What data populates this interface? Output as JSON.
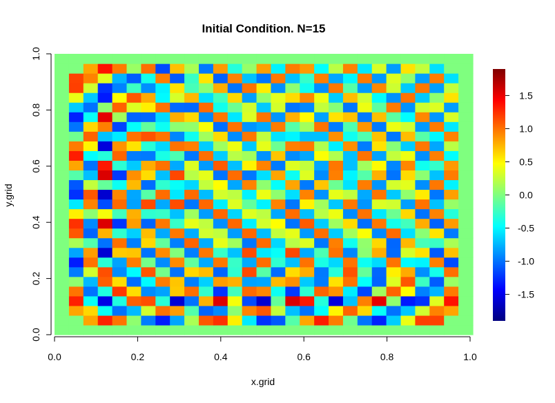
{
  "chart_data": {
    "type": "heatmap",
    "title": "Initial Condition. N=15",
    "xlabel": "x.grid",
    "ylabel": "y.grid",
    "xlim": [
      0,
      1
    ],
    "ylim": [
      0,
      1
    ],
    "xticks": [
      "0.0",
      "0.2",
      "0.4",
      "0.6",
      "0.8",
      "1.0"
    ],
    "yticks": [
      "0.0",
      "0.2",
      "0.4",
      "0.6",
      "0.8",
      "1.0"
    ],
    "grid": false,
    "legend": "right",
    "colorbar": {
      "palette": "jet",
      "range": [
        -1.9,
        1.9
      ],
      "ticks": [
        "1.5",
        "1.0",
        "0.5",
        "0.0",
        "-0.5",
        "-1.0",
        "-1.5"
      ],
      "colors": [
        "#00007F",
        "#0000FF",
        "#007FFF",
        "#00FFFF",
        "#7FFF7F",
        "#FFFF00",
        "#FF7F00",
        "#FF0000",
        "#7F0000"
      ]
    },
    "grid_size": 29,
    "z": [
      [
        0.0,
        0.0,
        0.0,
        0.0,
        0.0,
        0.0,
        0.0,
        0.0,
        0.0,
        0.0,
        0.0,
        0.0,
        0.0,
        0.0,
        0.0,
        0.0,
        0.0,
        0.0,
        0.0,
        0.0,
        0.0,
        0.0,
        0.0,
        0.0,
        0.0,
        0.0,
        0.0,
        0.0,
        0.0
      ],
      [
        0.0,
        0.0,
        0.81,
        1.3,
        0.99,
        0.06,
        -0.96,
        -1.32,
        -0.81,
        0.16,
        1.1,
        1.24,
        0.53,
        -0.55,
        -1.24,
        -1.1,
        -0.16,
        0.81,
        1.32,
        0.96,
        -0.06,
        -0.99,
        -1.3,
        -0.66,
        0.4,
        1.19,
        1.18,
        0.0,
        0.0
      ],
      [
        0.0,
        0.81,
        0.62,
        -0.44,
        -1.0,
        -0.73,
        0.3,
        1.0,
        0.84,
        -0.17,
        -1.05,
        -0.91,
        0.05,
        0.93,
        1.1,
        0.25,
        -0.71,
        -1.0,
        -0.47,
        0.51,
        1.06,
        0.62,
        -0.45,
        -1.0,
        -0.68,
        0.3,
        0.94,
        0.81,
        0.0
      ],
      [
        0.0,
        1.3,
        -0.44,
        -1.52,
        -0.36,
        1.07,
        1.13,
        -0.32,
        -1.59,
        -1.0,
        0.76,
        1.55,
        0.44,
        -1.14,
        -1.6,
        -0.1,
        1.56,
        1.34,
        -0.34,
        -1.55,
        -0.7,
        0.95,
        1.52,
        0.06,
        -1.33,
        -1.24,
        0.36,
        1.36,
        0.0
      ],
      [
        0.0,
        0.99,
        -1.0,
        -0.36,
        1.22,
        0.6,
        -0.9,
        -0.82,
        0.67,
        1.01,
        -0.29,
        -1.23,
        -0.23,
        1.03,
        0.92,
        -0.43,
        -1.21,
        -0.31,
        1.05,
        0.88,
        -0.54,
        -1.17,
        0.13,
        1.06,
        0.48,
        -0.94,
        -0.75,
        0.97,
        0.0
      ],
      [
        0.0,
        0.06,
        -0.73,
        1.07,
        0.6,
        -1.02,
        -0.49,
        0.96,
        0.69,
        -0.95,
        -0.65,
        0.84,
        0.77,
        -0.82,
        -0.8,
        0.73,
        0.89,
        -0.67,
        -0.96,
        0.58,
        1.0,
        -0.46,
        -1.05,
        0.35,
        1.1,
        -0.25,
        -1.08,
        0.1,
        0.0
      ],
      [
        0.0,
        -0.96,
        0.3,
        1.13,
        -0.9,
        -0.49,
        1.11,
        -0.04,
        -1.0,
        0.62,
        0.72,
        -1.05,
        -0.3,
        1.15,
        -0.15,
        -1.02,
        0.6,
        0.78,
        -0.97,
        -0.33,
        1.12,
        -0.1,
        -1.04,
        0.53,
        0.79,
        -0.89,
        -0.4,
        1.01,
        0.0
      ],
      [
        0.0,
        -1.32,
        1.0,
        -0.32,
        -0.82,
        0.96,
        -0.04,
        -0.9,
        0.91,
        -0.11,
        -0.79,
        0.98,
        -0.27,
        -0.79,
        1.02,
        -0.3,
        -0.71,
        1.0,
        -0.38,
        -0.62,
        0.99,
        -0.43,
        -0.61,
        1.0,
        -0.49,
        -0.52,
        0.95,
        -1.15,
        0.0
      ],
      [
        0.0,
        -0.81,
        0.84,
        -1.59,
        0.67,
        0.69,
        -1.0,
        0.91,
        0.01,
        -0.95,
        0.98,
        -0.27,
        -0.7,
        1.14,
        -0.56,
        -0.45,
        1.16,
        -0.79,
        -0.19,
        1.0,
        -0.92,
        0.05,
        0.78,
        -1.03,
        0.32,
        0.58,
        -1.09,
        0.71,
        0.0
      ],
      [
        0.0,
        0.16,
        -0.17,
        -1.0,
        1.01,
        -0.95,
        0.62,
        -0.11,
        -0.95,
        1.05,
        -0.78,
        0.38,
        0.12,
        -0.98,
        1.03,
        -0.62,
        0.21,
        0.34,
        -0.98,
        0.95,
        -0.42,
        0.07,
        0.62,
        -1.04,
        0.74,
        -0.21,
        -0.26,
        0.16,
        0.0
      ],
      [
        0.0,
        1.1,
        -1.05,
        0.76,
        -0.29,
        -0.65,
        0.72,
        -0.79,
        0.98,
        -0.78,
        0.3,
        0.24,
        -0.84,
        1.04,
        -0.72,
        0.25,
        0.38,
        -0.85,
        1.01,
        -0.66,
        0.13,
        0.46,
        -0.91,
        1.03,
        -0.59,
        0.04,
        0.57,
        -0.97,
        0.0
      ],
      [
        0.0,
        1.24,
        -0.91,
        1.55,
        -1.23,
        0.84,
        -1.05,
        0.98,
        -0.27,
        0.38,
        0.24,
        -0.89,
        1.04,
        -0.53,
        0.31,
        0.48,
        -0.99,
        1.09,
        -0.66,
        0.12,
        0.61,
        -1.01,
        0.98,
        -0.41,
        -0.23,
        0.78,
        -1.06,
        0.85,
        0.0
      ],
      [
        0.0,
        0.53,
        0.05,
        0.44,
        -0.23,
        0.77,
        -0.3,
        -0.27,
        -0.7,
        0.12,
        -0.84,
        1.04,
        -0.63,
        0.35,
        0.23,
        -0.8,
        1.02,
        -0.71,
        0.21,
        0.41,
        -0.9,
        1.0,
        -0.56,
        -0.07,
        0.62,
        -0.99,
        0.94,
        -0.34,
        0.0
      ],
      [
        0.0,
        -0.55,
        0.93,
        -1.14,
        1.03,
        -0.82,
        1.15,
        -0.79,
        1.14,
        -0.98,
        1.04,
        -0.53,
        0.35,
        -0.11,
        -0.52,
        0.94,
        -0.98,
        0.52,
        0.13,
        -0.68,
        0.98,
        -0.87,
        0.34,
        0.3,
        -0.83,
        1.0,
        -0.7,
        0.09,
        0.0
      ],
      [
        0.0,
        -1.24,
        1.1,
        -1.6,
        0.92,
        -0.8,
        -0.15,
        1.02,
        -0.56,
        1.03,
        -0.72,
        0.31,
        0.23,
        -0.52,
        0.4,
        0.06,
        -0.59,
        0.94,
        -0.88,
        0.38,
        0.24,
        -0.79,
        0.99,
        -0.67,
        0.07,
        0.54,
        -0.98,
        0.83,
        0.0
      ],
      [
        0.0,
        -1.1,
        0.25,
        -0.1,
        -0.43,
        0.73,
        -1.02,
        -0.3,
        -0.45,
        -0.62,
        0.25,
        0.48,
        -0.8,
        0.94,
        0.06,
        -0.46,
        0.81,
        -0.97,
        0.69,
        -0.07,
        -0.58,
        0.96,
        -0.87,
        0.31,
        0.37,
        -0.89,
        0.98,
        -0.52,
        0.0
      ],
      [
        0.0,
        -0.16,
        -0.71,
        1.56,
        -1.21,
        0.89,
        0.6,
        -0.71,
        1.16,
        0.21,
        0.38,
        -0.99,
        1.02,
        -0.98,
        -0.59,
        0.81,
        -0.43,
        0.35,
        -0.9,
        0.95,
        -0.51,
        -0.16,
        0.77,
        -0.99,
        0.61,
        0.05,
        -0.7,
        0.96,
        0.0
      ],
      [
        0.0,
        0.81,
        -1.0,
        1.34,
        -0.31,
        -0.67,
        0.78,
        1.0,
        -0.79,
        0.34,
        -0.85,
        1.09,
        -0.71,
        0.52,
        0.94,
        -0.97,
        0.35,
        0.25,
        -0.8,
        0.98,
        -0.71,
        0.13,
        0.49,
        -0.92,
        0.92,
        -0.42,
        -0.28,
        0.85,
        0.0
      ],
      [
        0.0,
        1.32,
        -0.47,
        -0.34,
        1.05,
        -0.96,
        -0.97,
        -0.38,
        -0.19,
        -0.98,
        1.01,
        -0.66,
        0.21,
        0.13,
        -0.88,
        0.69,
        -0.9,
        -0.8,
        0.46,
        0.18,
        -0.71,
        1.0,
        -0.82,
        0.25,
        0.41,
        -0.89,
        0.95,
        -0.47,
        0.0
      ],
      [
        0.0,
        0.96,
        0.51,
        -1.55,
        0.88,
        0.58,
        -0.33,
        -0.62,
        1.0,
        0.95,
        -0.66,
        0.12,
        0.41,
        -0.68,
        0.38,
        -0.07,
        0.95,
        0.98,
        0.18,
        -0.53,
        0.89,
        -0.96,
        0.58,
        0.03,
        -0.66,
        0.98,
        -0.8,
        0.22,
        0.0
      ],
      [
        0.0,
        -0.06,
        1.06,
        -0.7,
        -0.54,
        1.0,
        1.12,
        0.99,
        -0.92,
        -0.42,
        0.13,
        0.61,
        -0.9,
        0.98,
        0.24,
        -0.58,
        -0.51,
        -0.71,
        -0.71,
        0.89,
        -0.42,
        -0.18,
        0.7,
        -0.98,
        0.72,
        -0.15,
        -0.5,
        0.94,
        0.0
      ],
      [
        0.0,
        -0.99,
        0.62,
        0.95,
        -1.17,
        -0.46,
        -0.1,
        -0.43,
        0.05,
        0.07,
        0.46,
        -1.01,
        1.0,
        -0.87,
        -0.79,
        0.96,
        -0.16,
        0.13,
        1.0,
        -0.96,
        -0.18,
        0.87,
        -0.97,
        0.41,
        0.3,
        -0.85,
        0.97,
        -0.56,
        0.0
      ],
      [
        0.0,
        -1.3,
        -0.45,
        1.52,
        0.13,
        -1.05,
        -1.04,
        -0.61,
        0.78,
        0.62,
        -0.91,
        0.98,
        -0.56,
        0.34,
        0.99,
        -0.87,
        0.77,
        0.49,
        -0.82,
        0.58,
        0.7,
        -0.97,
        0.71,
        -0.13,
        -0.48,
        0.92,
        -0.86,
        0.33,
        0.0
      ],
      [
        0.0,
        -0.66,
        -1.0,
        0.06,
        1.06,
        0.35,
        0.53,
        1.0,
        -1.03,
        -1.04,
        1.03,
        -0.41,
        -0.07,
        0.3,
        -0.67,
        0.31,
        -0.99,
        -0.92,
        0.25,
        0.03,
        -0.98,
        0.41,
        -0.13,
        0.97,
        -0.88,
        0.29,
        0.35,
        -0.84,
        0.0
      ],
      [
        0.0,
        0.4,
        -0.68,
        -1.33,
        0.48,
        1.1,
        0.79,
        -0.49,
        0.32,
        0.74,
        -0.59,
        -0.23,
        0.62,
        -0.83,
        0.07,
        0.37,
        0.61,
        0.92,
        0.41,
        -0.66,
        0.72,
        0.3,
        -0.48,
        -0.88,
        1.0,
        -0.67,
        0.06,
        0.58,
        0.0
      ],
      [
        0.0,
        1.19,
        0.3,
        -1.24,
        -0.94,
        -0.25,
        -0.89,
        -0.52,
        0.58,
        -0.21,
        0.04,
        0.78,
        -0.99,
        1.0,
        0.54,
        -0.89,
        0.05,
        -0.42,
        -0.89,
        0.98,
        -0.15,
        -0.85,
        0.92,
        0.29,
        -0.67,
        0.98,
        -0.83,
        0.25,
        0.0
      ],
      [
        0.0,
        1.18,
        0.94,
        0.36,
        -0.75,
        -1.08,
        -0.4,
        0.95,
        -1.09,
        -0.26,
        0.57,
        -1.06,
        0.94,
        -0.7,
        -0.98,
        0.98,
        -0.7,
        -0.28,
        0.95,
        -0.8,
        -0.5,
        0.97,
        -0.86,
        0.35,
        0.06,
        -0.83,
        0.96,
        -0.59,
        0.0
      ],
      [
        0.0,
        0.0,
        0.81,
        1.36,
        0.97,
        0.1,
        1.01,
        -1.15,
        0.71,
        0.16,
        -0.97,
        0.85,
        -0.34,
        0.09,
        0.83,
        -0.52,
        0.96,
        0.85,
        -0.47,
        0.22,
        0.94,
        -0.56,
        0.33,
        -0.84,
        0.58,
        0.25,
        -0.59,
        0.0,
        0.0
      ],
      [
        0.0,
        0.0,
        0.0,
        0.0,
        0.0,
        0.0,
        0.0,
        0.0,
        0.0,
        0.0,
        0.0,
        0.0,
        0.0,
        0.0,
        0.0,
        0.0,
        0.0,
        0.0,
        0.0,
        0.0,
        0.0,
        0.0,
        0.0,
        0.0,
        0.0,
        0.0,
        0.0,
        0.0,
        0.0
      ]
    ]
  }
}
